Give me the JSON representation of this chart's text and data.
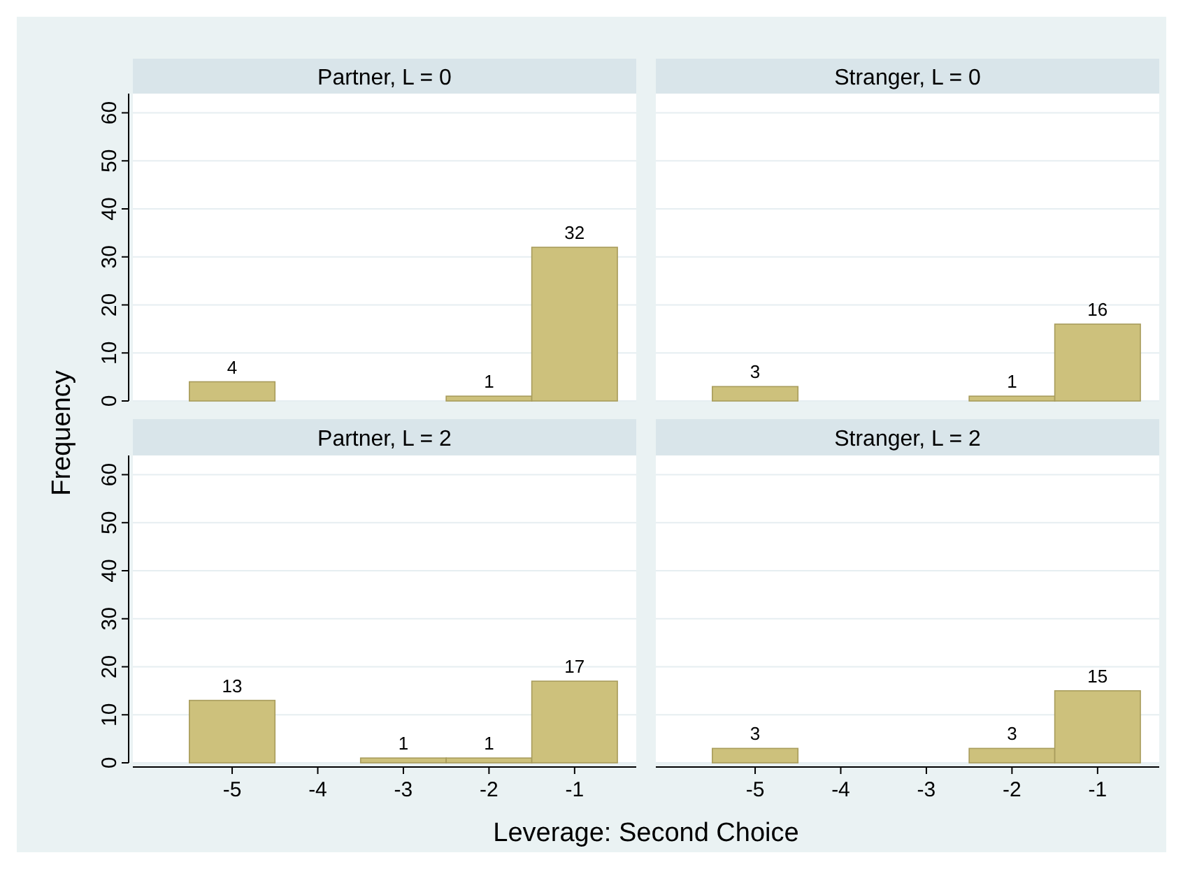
{
  "chart_data": [
    {
      "type": "histogram",
      "title": "Partner, L = 0",
      "ylabel": "Frequency",
      "bins": [
        -5.5,
        -4.5,
        -3.5,
        -2.5,
        -1.5,
        -0.5
      ],
      "values": [
        4,
        0,
        0,
        1,
        32
      ],
      "value_labels": [
        "4",
        null,
        null,
        "1",
        "32"
      ],
      "color": "#cdc17c",
      "xlim": [
        -6.16,
        -0.28
      ],
      "ylim": [
        0,
        64
      ],
      "yticks": [
        0,
        10,
        20,
        30,
        40,
        50,
        60
      ],
      "grid": "y",
      "tick_labels": "y"
    },
    {
      "type": "histogram",
      "title": "Stranger, L = 0",
      "bins": [
        -5.5,
        -4.5,
        -3.5,
        -2.5,
        -1.5,
        -0.5
      ],
      "values": [
        3,
        0,
        0,
        1,
        16
      ],
      "value_labels": [
        "3",
        null,
        null,
        "1",
        "16"
      ],
      "color": "#cdc17c",
      "xlim": [
        -6.16,
        -0.28
      ],
      "ylim": [
        0,
        64
      ],
      "yticks": [
        0,
        10,
        20,
        30,
        40,
        50,
        60
      ],
      "grid": "y",
      "tick_labels": false
    },
    {
      "type": "histogram",
      "title": "Partner, L = 2",
      "xlabel": "Leverage: Second Choice",
      "bins": [
        -5.5,
        -4.5,
        -3.5,
        -2.5,
        -1.5,
        -0.5
      ],
      "values": [
        13,
        0,
        1,
        1,
        17
      ],
      "value_labels": [
        "13",
        null,
        "1",
        "1",
        "17"
      ],
      "color": "#cdc17c",
      "xlim": [
        -6.16,
        -0.28
      ],
      "xticks": [
        -5,
        -4,
        -3,
        -2,
        -1
      ],
      "ylim": [
        0,
        64
      ],
      "yticks": [
        0,
        10,
        20,
        30,
        40,
        50,
        60
      ],
      "grid": "y"
    },
    {
      "type": "histogram",
      "title": "Stranger, L = 2",
      "bins": [
        -5.5,
        -4.5,
        -3.5,
        -2.5,
        -1.5,
        -0.5
      ],
      "values": [
        3,
        0,
        0,
        3,
        15
      ],
      "value_labels": [
        "3",
        null,
        null,
        "3",
        "15"
      ],
      "color": "#cdc17c",
      "xlim": [
        -6.16,
        -0.28
      ],
      "xticks": [
        -5,
        -4,
        -3,
        -2,
        -1
      ],
      "ylim": [
        0,
        64
      ],
      "yticks": [
        0,
        10,
        20,
        30,
        40,
        50,
        60
      ],
      "grid": "y",
      "tick_labels": "x"
    }
  ]
}
